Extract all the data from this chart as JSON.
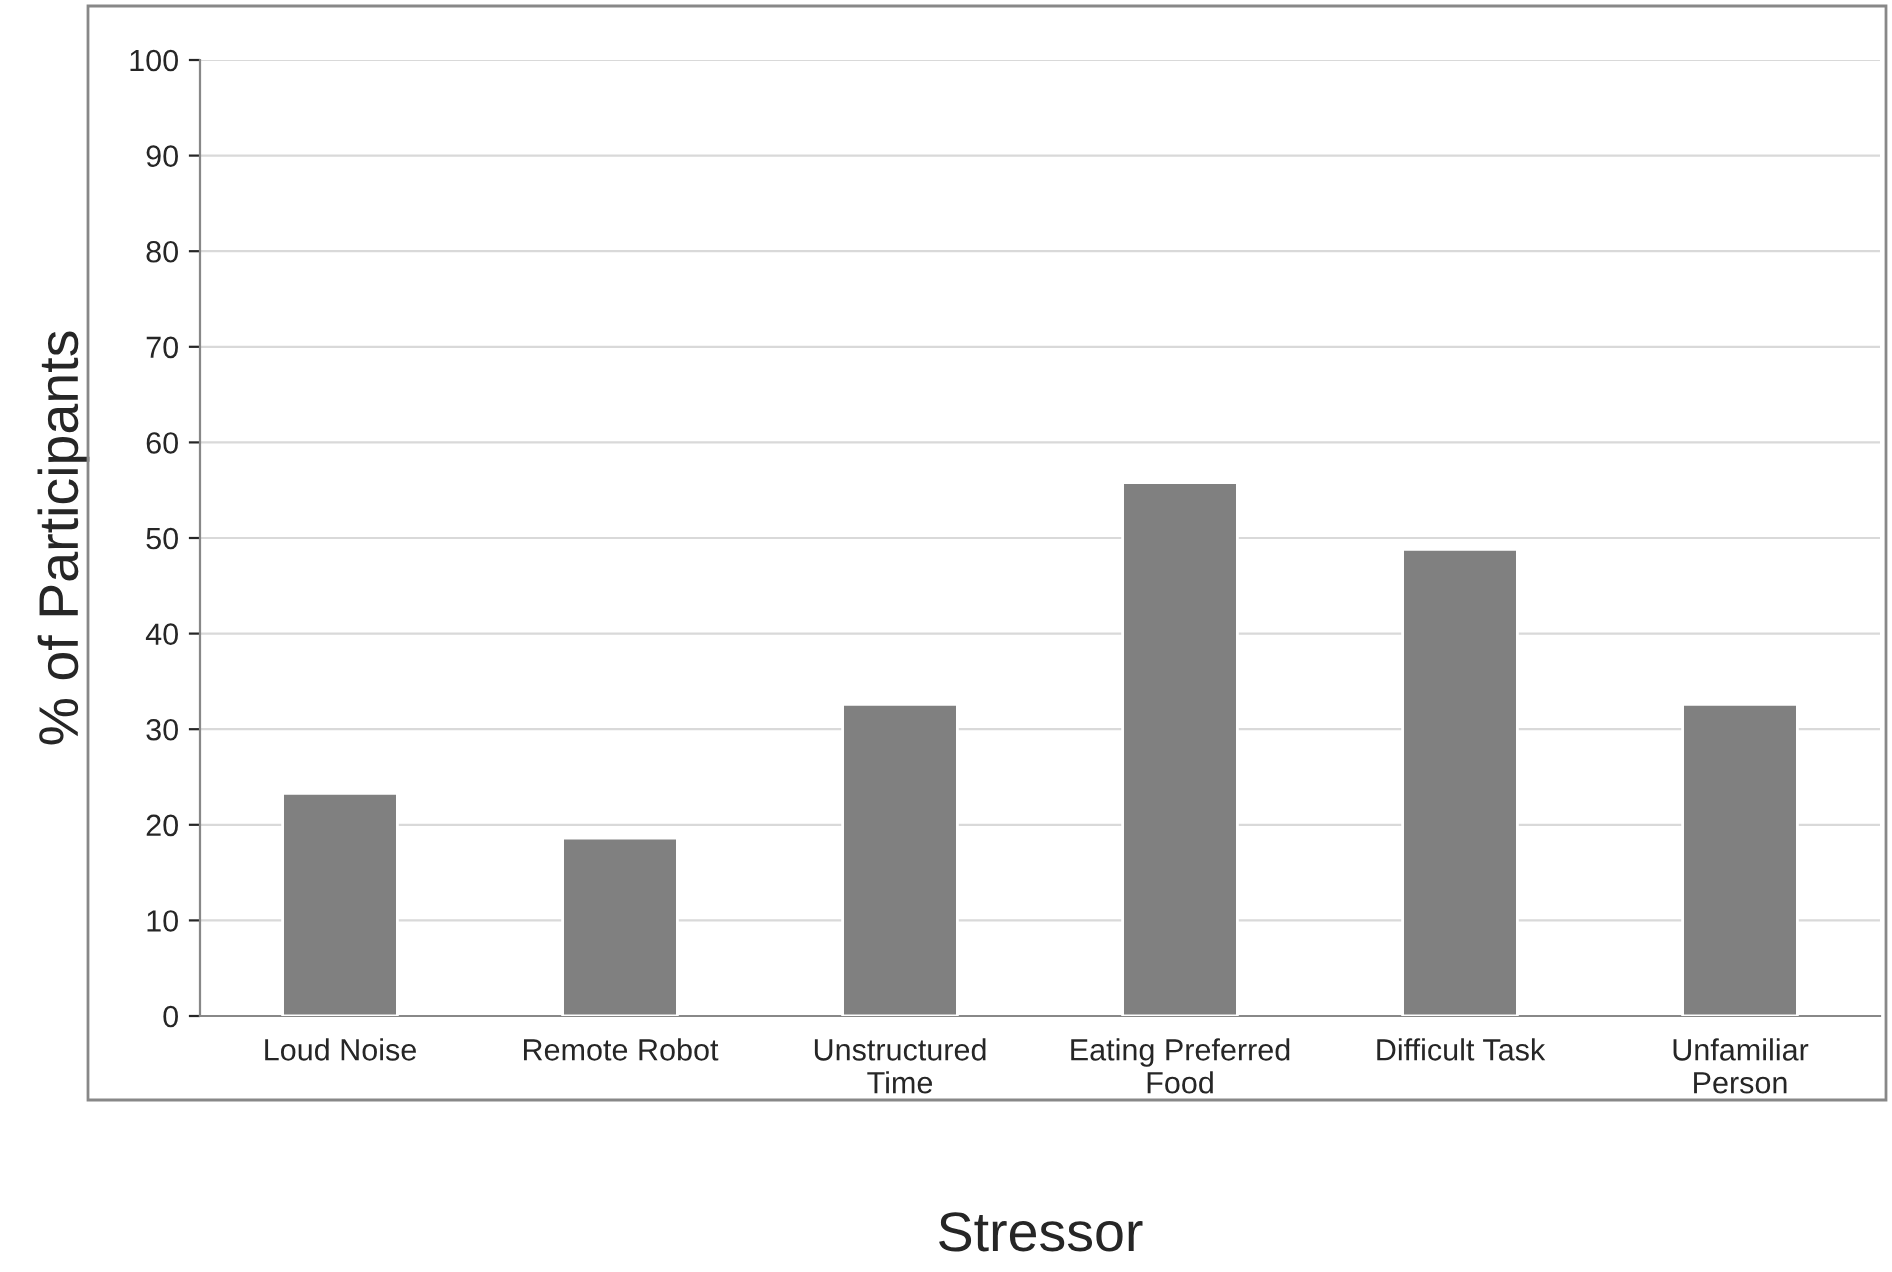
{
  "chart_data": {
    "type": "bar",
    "xlabel": "Stressor",
    "ylabel": "% of Participants",
    "categories": [
      "Loud Noise",
      "Remote Robot",
      "Unstructured\nTime",
      "Eating Preferred\nFood",
      "Difficult Task",
      "Unfamiliar\nPerson"
    ],
    "values": [
      23.3,
      18.6,
      32.6,
      55.8,
      48.8,
      32.6
    ],
    "color": "#808080",
    "ylim": [
      0,
      100
    ],
    "yticks": [
      0,
      10,
      20,
      30,
      40,
      50,
      60,
      70,
      80,
      90,
      100
    ],
    "grid": "y"
  }
}
